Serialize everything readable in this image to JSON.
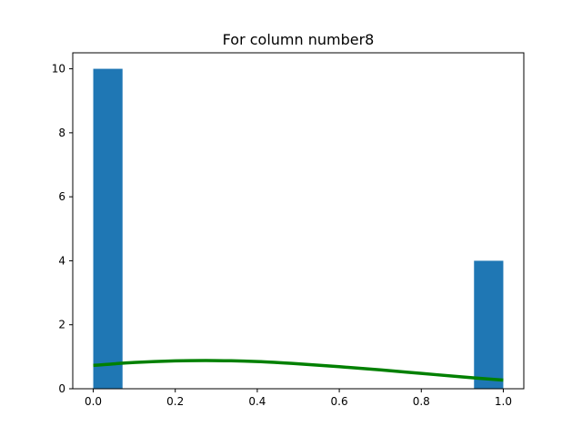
{
  "chart_data": {
    "type": "bar",
    "title": "For column number8",
    "xlabel": "",
    "ylabel": "",
    "xlim": [
      -0.05,
      1.05
    ],
    "ylim": [
      0,
      10.5
    ],
    "grid": false,
    "xticks": [
      0.0,
      0.2,
      0.4,
      0.6,
      0.8,
      1.0
    ],
    "xtick_labels": [
      "0.0",
      "0.2",
      "0.4",
      "0.6",
      "0.8",
      "1.0"
    ],
    "yticks": [
      0,
      2,
      4,
      6,
      8,
      10
    ],
    "ytick_labels": [
      "0",
      "2",
      "4",
      "6",
      "8",
      "10"
    ],
    "bars": [
      {
        "x0": 0.0,
        "x1": 0.0714,
        "value": 10
      },
      {
        "x0": 0.0714,
        "x1": 0.1429,
        "value": 0
      },
      {
        "x0": 0.1429,
        "x1": 0.2143,
        "value": 0
      },
      {
        "x0": 0.2143,
        "x1": 0.2857,
        "value": 0
      },
      {
        "x0": 0.2857,
        "x1": 0.3571,
        "value": 0
      },
      {
        "x0": 0.3571,
        "x1": 0.4286,
        "value": 0
      },
      {
        "x0": 0.4286,
        "x1": 0.5,
        "value": 0
      },
      {
        "x0": 0.5,
        "x1": 0.5714,
        "value": 0
      },
      {
        "x0": 0.5714,
        "x1": 0.6429,
        "value": 0
      },
      {
        "x0": 0.6429,
        "x1": 0.7143,
        "value": 0
      },
      {
        "x0": 0.7143,
        "x1": 0.7857,
        "value": 0
      },
      {
        "x0": 0.7857,
        "x1": 0.8571,
        "value": 0
      },
      {
        "x0": 0.8571,
        "x1": 0.9286,
        "value": 0
      },
      {
        "x0": 0.9286,
        "x1": 1.0,
        "value": 4
      }
    ],
    "curve": {
      "x": [
        0.0,
        0.1,
        0.2,
        0.3,
        0.4,
        0.5,
        0.6,
        0.7,
        0.8,
        0.9,
        1.0
      ],
      "y": [
        0.73,
        0.82,
        0.87,
        0.88,
        0.85,
        0.78,
        0.69,
        0.59,
        0.48,
        0.37,
        0.27
      ]
    },
    "colors": {
      "bar": "#1f77b4",
      "curve": "#008000"
    }
  }
}
